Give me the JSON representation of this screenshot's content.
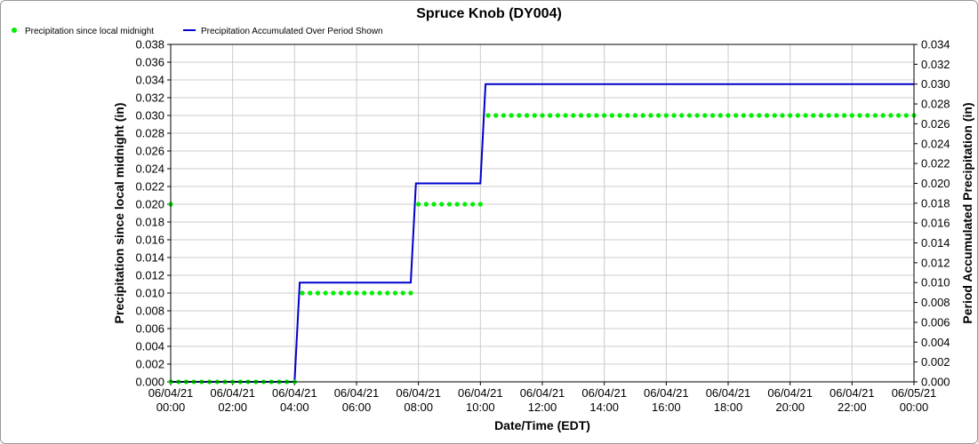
{
  "chart_data": {
    "type": "line",
    "title": "Spruce Knob (DY004)",
    "xlabel": "Date/Time (EDT)",
    "ylabel_left": "Precipitation since local midnight (in)",
    "ylabel_right": "Period Accumulated Precipitation (in)",
    "x_range": [
      "06/04/21 00:00",
      "06/05/21 00:00"
    ],
    "x_ticks": [
      {
        "date": "06/04/21",
        "time": "00:00"
      },
      {
        "date": "06/04/21",
        "time": "02:00"
      },
      {
        "date": "06/04/21",
        "time": "04:00"
      },
      {
        "date": "06/04/21",
        "time": "06:00"
      },
      {
        "date": "06/04/21",
        "time": "08:00"
      },
      {
        "date": "06/04/21",
        "time": "10:00"
      },
      {
        "date": "06/04/21",
        "time": "12:00"
      },
      {
        "date": "06/04/21",
        "time": "14:00"
      },
      {
        "date": "06/04/21",
        "time": "16:00"
      },
      {
        "date": "06/04/21",
        "time": "18:00"
      },
      {
        "date": "06/04/21",
        "time": "20:00"
      },
      {
        "date": "06/04/21",
        "time": "22:00"
      },
      {
        "date": "06/05/21",
        "time": "00:00"
      }
    ],
    "ylim_left": [
      0,
      0.038
    ],
    "y_ticks_left": [
      "0.000",
      "0.002",
      "0.004",
      "0.006",
      "0.008",
      "0.010",
      "0.012",
      "0.014",
      "0.016",
      "0.018",
      "0.020",
      "0.022",
      "0.024",
      "0.026",
      "0.028",
      "0.030",
      "0.032",
      "0.034",
      "0.036",
      "0.038"
    ],
    "ylim_right": [
      0,
      0.034
    ],
    "y_ticks_right": [
      "0.000",
      "0.002",
      "0.004",
      "0.006",
      "0.008",
      "0.010",
      "0.012",
      "0.014",
      "0.016",
      "0.018",
      "0.020",
      "0.022",
      "0.024",
      "0.026",
      "0.028",
      "0.030",
      "0.032",
      "0.034"
    ],
    "grid": true,
    "legend_position": "top-left",
    "series": [
      {
        "name": "Precipitation since local midnight",
        "kind": "scatter",
        "axis": "left",
        "color": "#00ee00",
        "interval_minutes": 15,
        "points": [
          {
            "x": "06/04/21 00:00",
            "y": 0.02
          },
          {
            "x_from": "06/04/21 00:00",
            "x_to": "06/04/21 04:00",
            "y": 0.0
          },
          {
            "x_from": "06/04/21 04:15",
            "x_to": "06/04/21 07:45",
            "y": 0.01
          },
          {
            "x_from": "06/04/21 08:00",
            "x_to": "06/04/21 10:00",
            "y": 0.02
          },
          {
            "x_from": "06/04/21 10:15",
            "x_to": "06/05/21 00:00",
            "y": 0.03
          }
        ]
      },
      {
        "name": "Precipitation Accumulated Over Period Shown",
        "kind": "line",
        "axis": "right",
        "color": "#0000cc",
        "points": [
          {
            "x": "06/04/21 00:00",
            "y": 0.0
          },
          {
            "x": "06/04/21 04:00",
            "y": 0.0
          },
          {
            "x": "06/04/21 04:10",
            "y": 0.01
          },
          {
            "x": "06/04/21 07:45",
            "y": 0.01
          },
          {
            "x": "06/04/21 07:55",
            "y": 0.02
          },
          {
            "x": "06/04/21 10:00",
            "y": 0.02
          },
          {
            "x": "06/04/21 10:10",
            "y": 0.03
          },
          {
            "x": "06/05/21 00:00",
            "y": 0.03
          }
        ]
      }
    ]
  }
}
